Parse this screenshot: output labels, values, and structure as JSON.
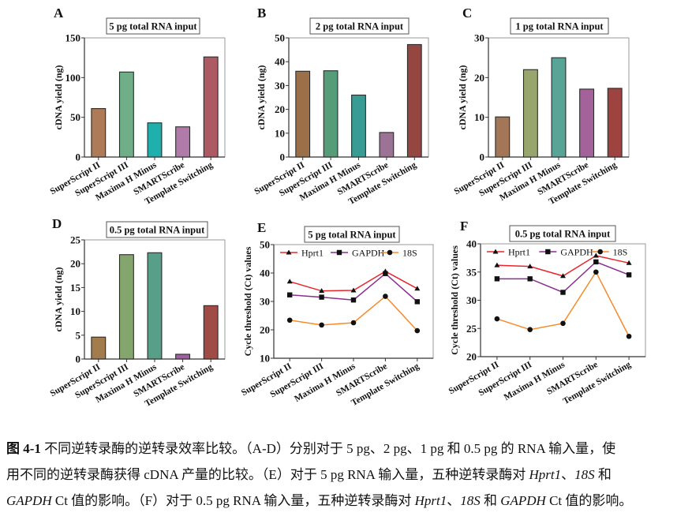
{
  "chart_data": [
    {
      "id": "A",
      "type": "bar",
      "panel_label": "A",
      "title": "5 pg total RNA input",
      "xlabel": "",
      "ylabel": "cDNA yield (ng)",
      "categories": [
        "SuperScript II",
        "SuperScript III",
        "Maxima H Minus",
        "SMARTScribe",
        "Template Switching"
      ],
      "values": [
        61,
        107,
        43,
        38,
        126
      ],
      "colors": [
        "#ad7b58",
        "#6fae86",
        "#1fb0ad",
        "#b07ba9",
        "#ad5a63"
      ],
      "ylim": [
        0,
        150
      ],
      "yticks": [
        0,
        50,
        100,
        150
      ],
      "grid": false
    },
    {
      "id": "B",
      "type": "bar",
      "panel_label": "B",
      "title": "2 pg total RNA input",
      "xlabel": "",
      "ylabel": "cDNA yield (ng)",
      "categories": [
        "SuperScript II",
        "SuperScript III",
        "Maxima H Minus",
        "SMARTScribe",
        "Template Switching"
      ],
      "values": [
        36,
        36.2,
        26,
        10.3,
        47.2
      ],
      "colors": [
        "#9b7049",
        "#559c79",
        "#389b94",
        "#9d7395",
        "#954641"
      ],
      "ylim": [
        0,
        50
      ],
      "yticks": [
        0,
        10,
        20,
        30,
        40,
        50
      ],
      "grid": false
    },
    {
      "id": "C",
      "type": "bar",
      "panel_label": "C",
      "title": "1 pg total RNA input",
      "xlabel": "",
      "ylabel": "cDNA yield (ng)",
      "categories": [
        "SuperScript II",
        "SuperScript III",
        "Maxima H Minus",
        "SMARTScribe",
        "Template Switching"
      ],
      "values": [
        10.1,
        22,
        25,
        17.1,
        17.3
      ],
      "colors": [
        "#a37657",
        "#98a66e",
        "#58a597",
        "#a4629a",
        "#9e4340"
      ],
      "ylim": [
        0,
        30
      ],
      "yticks": [
        0,
        10,
        20,
        30
      ],
      "grid": false
    },
    {
      "id": "D",
      "type": "bar",
      "panel_label": "D",
      "title": "0.5 pg total RNA input",
      "xlabel": "",
      "ylabel": "cDNA yield (ng)",
      "categories": [
        "SuperScript II",
        "SuperScript III",
        "Maxima H Minus",
        "SMARTScribe",
        "Template Switching"
      ],
      "values": [
        4.6,
        21.9,
        22.3,
        1.0,
        11.2
      ],
      "colors": [
        "#a37c4e",
        "#84a66e",
        "#579f89",
        "#a05f9e",
        "#a04b46"
      ],
      "ylim": [
        0,
        25
      ],
      "yticks": [
        0,
        5,
        10,
        15,
        20,
        25
      ],
      "grid": false
    },
    {
      "id": "E",
      "type": "line",
      "panel_label": "E",
      "title": "5 pg total RNA input",
      "xlabel": "",
      "ylabel": "Cycle threshold (Ct) values",
      "categories": [
        "SuperScript II",
        "SuperScript III",
        "Maxima H Minus",
        "SMARTScribe",
        "Template Switching"
      ],
      "series": [
        {
          "name": "Hprt1",
          "values": [
            37.0,
            33.7,
            33.9,
            40.6,
            34.5
          ],
          "color": "#e8262b",
          "marker": "triangle"
        },
        {
          "name": "GAPDH",
          "values": [
            32.3,
            31.5,
            30.5,
            39.8,
            29.9
          ],
          "color": "#8b2c90",
          "marker": "square"
        },
        {
          "name": "18S",
          "values": [
            23.4,
            21.7,
            22.5,
            31.8,
            19.7
          ],
          "color": "#f68b2c",
          "marker": "circle"
        }
      ],
      "ylim": [
        10,
        50
      ],
      "yticks": [
        10,
        20,
        30,
        40,
        50
      ],
      "legend": "top",
      "grid": false
    },
    {
      "id": "F",
      "type": "line",
      "panel_label": "F",
      "title": "0.5 pg total RNA input",
      "xlabel": "",
      "ylabel": "Cycle threshold (Ct) values",
      "categories": [
        "SuperScript II",
        "SuperScript III",
        "Maxima H Minus",
        "SMARTScribe",
        "Template Switching"
      ],
      "series": [
        {
          "name": "Hprt1",
          "values": [
            36.2,
            36.0,
            34.3,
            37.9,
            36.6
          ],
          "color": "#e8262b",
          "marker": "triangle"
        },
        {
          "name": "GAPDH",
          "values": [
            33.8,
            33.8,
            31.4,
            36.8,
            34.5
          ],
          "color": "#8b2c90",
          "marker": "square"
        },
        {
          "name": "18S",
          "values": [
            26.7,
            24.8,
            25.9,
            35.0,
            23.6
          ],
          "color": "#f68b2c",
          "marker": "circle"
        }
      ],
      "ylim": [
        20,
        40
      ],
      "yticks": [
        20,
        25,
        30,
        35,
        40
      ],
      "legend": "top",
      "grid": false
    }
  ],
  "caption": {
    "label": "图 4-1",
    "line1_a": "不同逆转录酶的逆转录效率比较。（A-D）分别对于 5 pg、2 pg、1 pg 和 0.5 pg 的 RNA 输入量，使",
    "line2_a": "用不同的逆转录酶获得 cDNA 产量的比较。（E）对于 5 pg RNA 输入量，五种逆转录酶对 ",
    "line2_g1": "Hprt1",
    "line2_b": "、",
    "line2_g2": "18S",
    "line2_c": " 和",
    "line3_g0": "GAPDH",
    "line3_a": " Ct 值的影响。（F）对于 0.5 pg RNA 输入量，五种逆转录酶对 ",
    "line3_g1": "Hprt1",
    "line3_b": "、",
    "line3_g2": "18S",
    "line3_c": " 和 ",
    "line3_g3": "GAPDH",
    "line3_d": " Ct 值的影响。"
  }
}
